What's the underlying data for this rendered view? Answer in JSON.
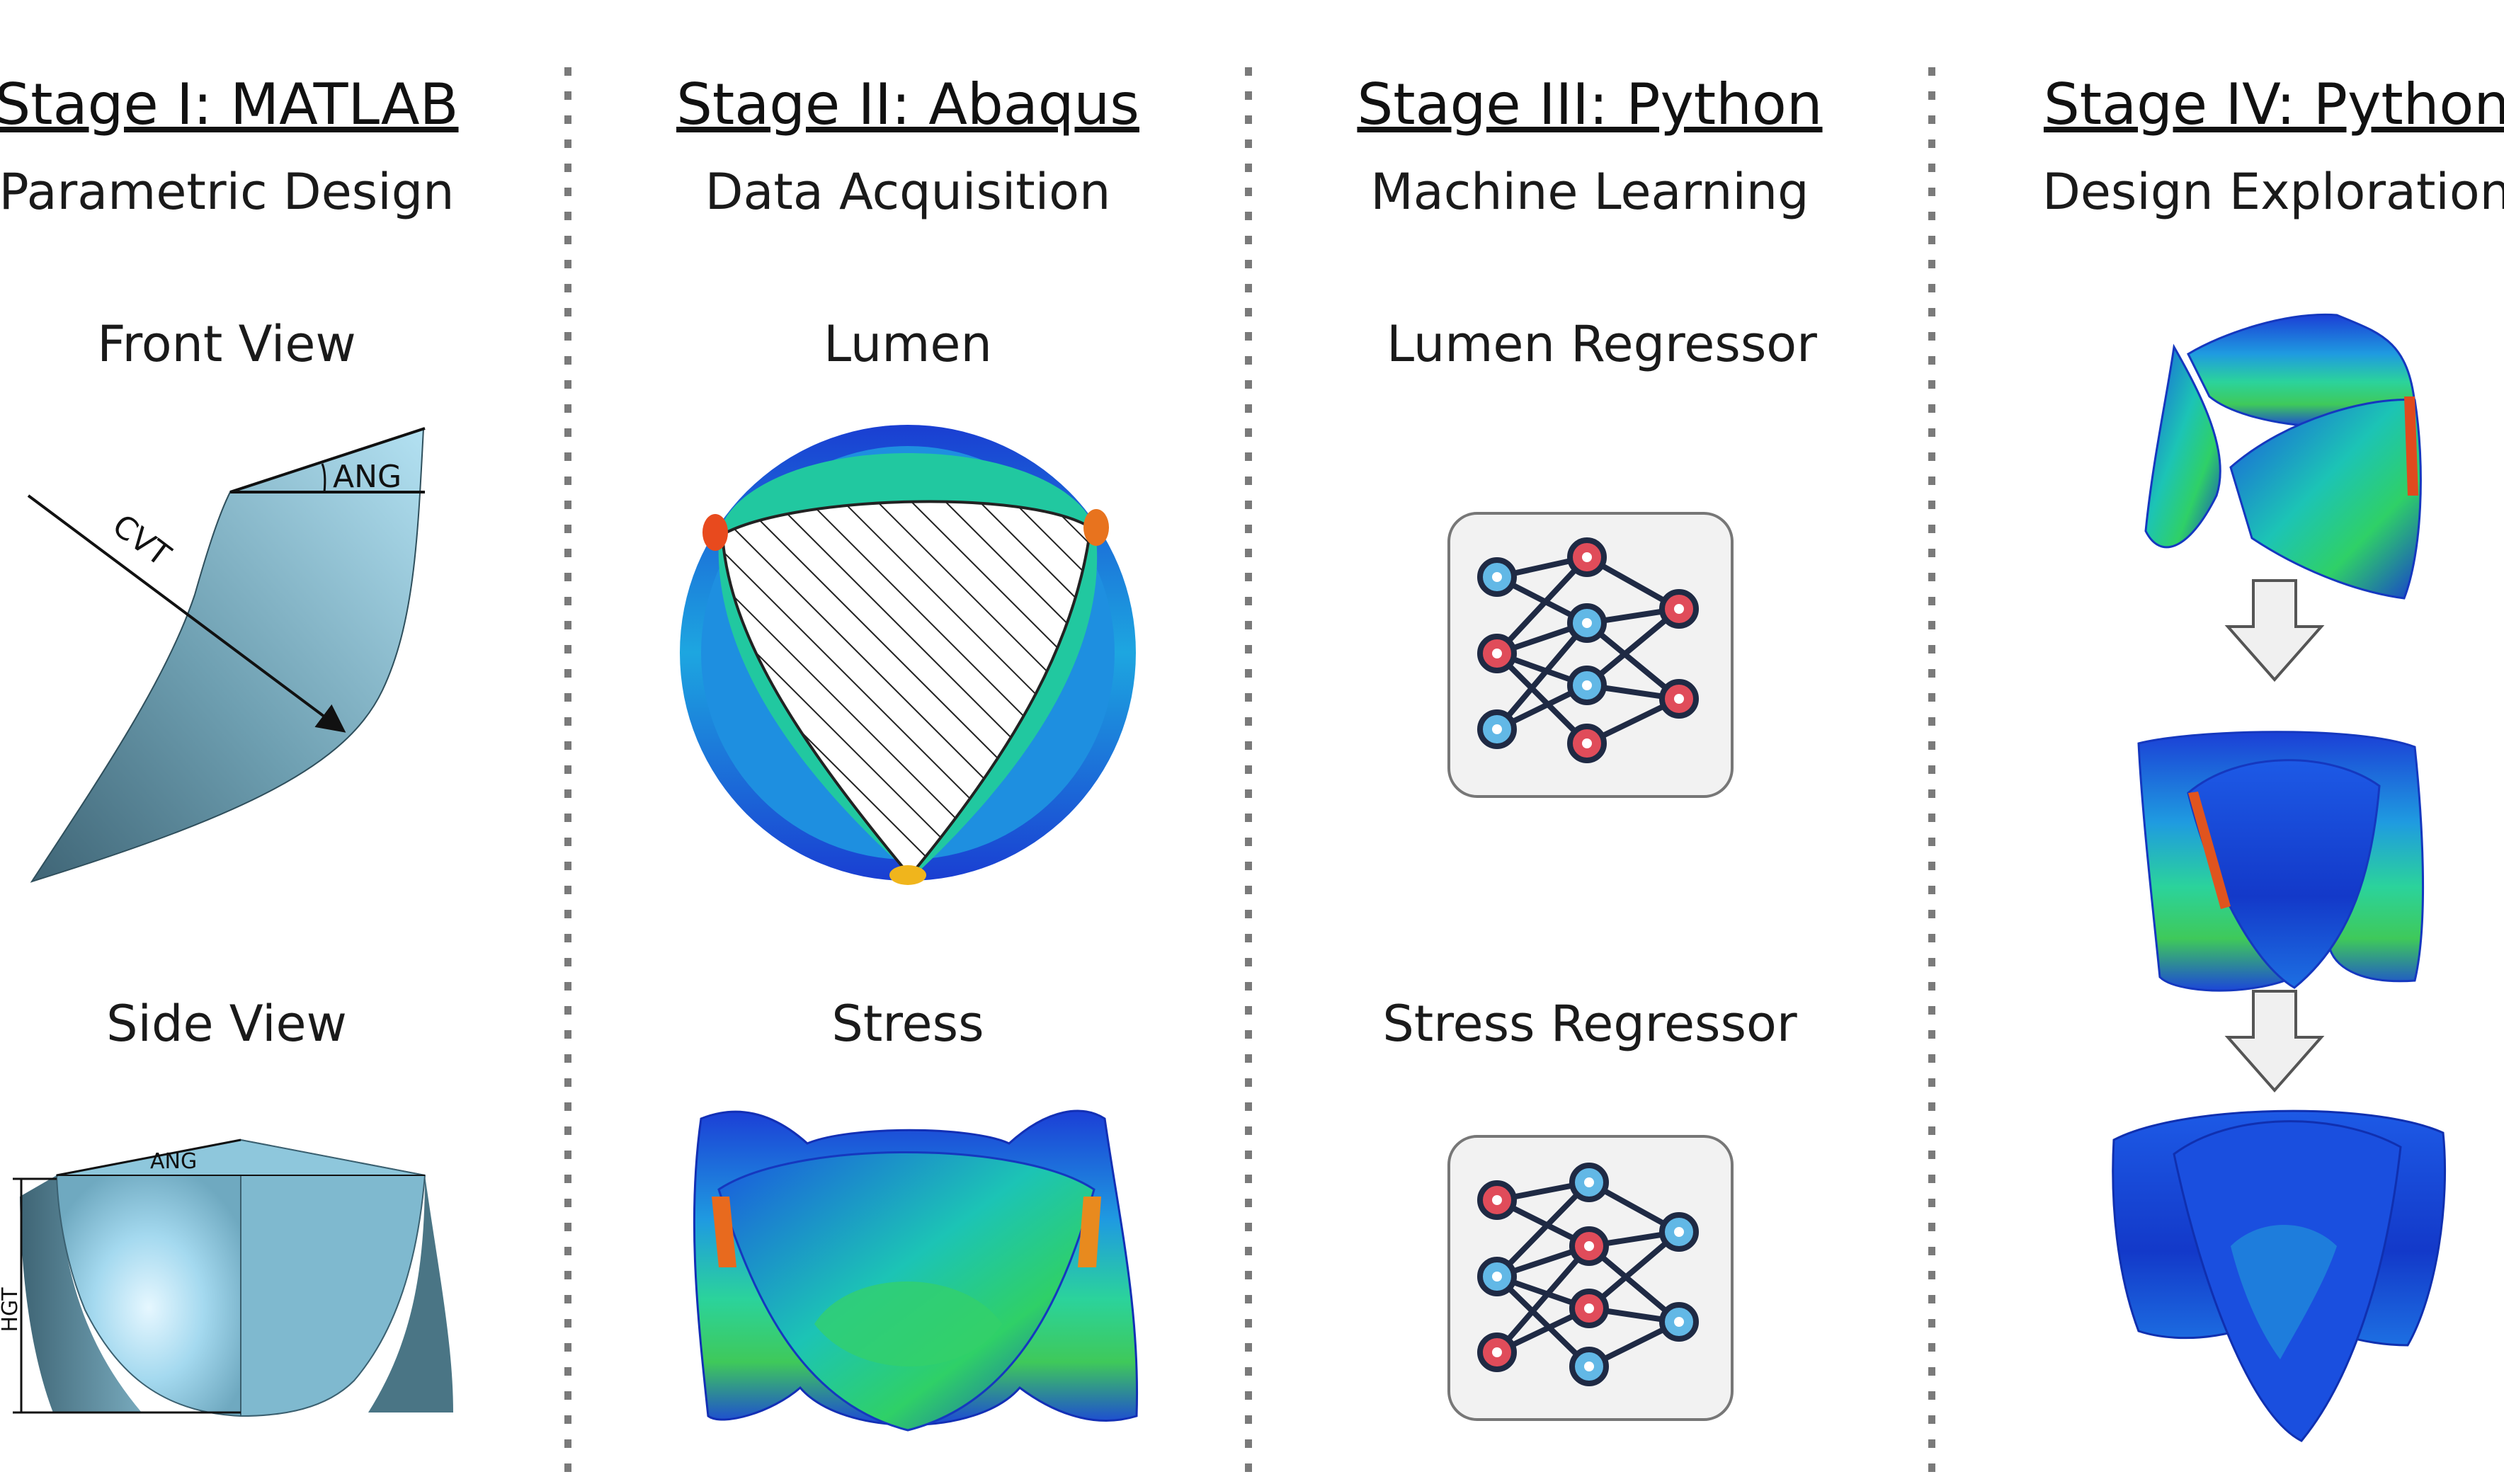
{
  "stages": [
    {
      "title": "Stage I: MATLAB",
      "subtitle": "Parametric Design"
    },
    {
      "title": "Stage II: Abaqus",
      "subtitle": "Data Acquisition"
    },
    {
      "title": "Stage III: Python",
      "subtitle": "Machine Learning"
    },
    {
      "title": "Stage IV: Python",
      "subtitle": "Design Exploration"
    }
  ],
  "panels": {
    "front_view": "Front View",
    "side_view": "Side View",
    "lumen": "Lumen",
    "stress": "Stress",
    "lumen_regressor": "Lumen Regressor",
    "stress_regressor": "Stress Regressor"
  },
  "dimensions": {
    "ang": "ANG",
    "cvt": "CVT",
    "hgt": "HGT"
  },
  "colors": {
    "leaflet_light": "#a9dbef",
    "leaflet_dark": "#4b7587",
    "nn_node_red": "#e04c5a",
    "nn_node_blue": "#62b8e6",
    "nn_edge": "#1f2a44",
    "divider": "#777777"
  }
}
